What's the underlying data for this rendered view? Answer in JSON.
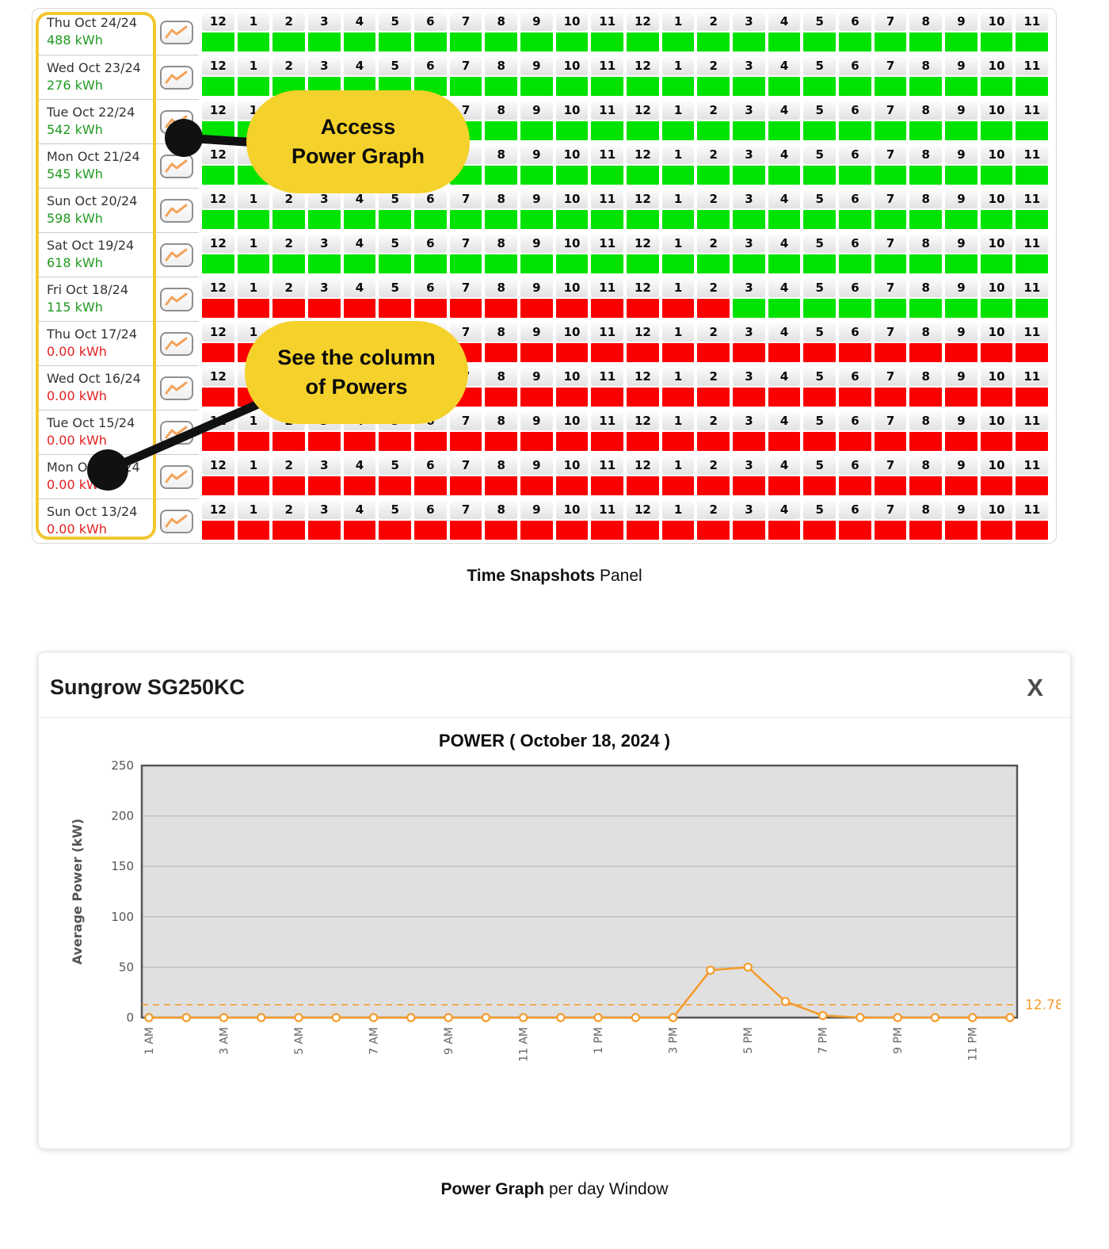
{
  "snapshot_panel": {
    "hour_labels": [
      "12",
      "1",
      "2",
      "3",
      "4",
      "5",
      "6",
      "7",
      "8",
      "9",
      "10",
      "11",
      "12",
      "1",
      "2",
      "3",
      "4",
      "5",
      "6",
      "7",
      "8",
      "9",
      "10",
      "11"
    ],
    "cell_colors": {
      "green": "#00e300",
      "red": "#fb0000"
    },
    "energy_colors": {
      "green": "#209a20",
      "red": "#e32020"
    },
    "rows": [
      {
        "date": "Thu Oct 24/24",
        "energy": "488 kWh",
        "status": "green",
        "cells": "GGGGGGGGGGGGGGGGGGGGGGGG"
      },
      {
        "date": "Wed Oct 23/24",
        "energy": "276 kWh",
        "status": "green",
        "cells": "GGGGGGGGGGGGGGGGGGGGGGGG"
      },
      {
        "date": "Tue Oct 22/24",
        "energy": "542 kWh",
        "status": "green",
        "cells": "GGGGGGGGGGGGGGGGGGGGGGGG"
      },
      {
        "date": "Mon Oct 21/24",
        "energy": "545 kWh",
        "status": "green",
        "cells": "GGGGGGGGGGGGGGGGGGGGGGGG"
      },
      {
        "date": "Sun Oct 20/24",
        "energy": "598 kWh",
        "status": "green",
        "cells": "GGGGGGGGGGGGGGGGGGGGGGGG"
      },
      {
        "date": "Sat Oct 19/24",
        "energy": "618 kWh",
        "status": "green",
        "cells": "GGGGGGGGGGGGGGGGGGGGGGGG"
      },
      {
        "date": "Fri Oct 18/24",
        "energy": "115 kWh",
        "status": "green",
        "cells": "RRRRRRRRRRRRRRRGGGGGGGGG"
      },
      {
        "date": "Thu Oct 17/24",
        "energy": "0.00 kWh",
        "status": "red",
        "cells": "RRRRRRRRRRRRRRRRRRRRRRRR"
      },
      {
        "date": "Wed Oct 16/24",
        "energy": "0.00 kWh",
        "status": "red",
        "cells": "RRRRRRRRRRRRRRRRRRRRRRRR"
      },
      {
        "date": "Tue Oct 15/24",
        "energy": "0.00 kWh",
        "status": "red",
        "cells": "RRRRRRRRRRRRRRRRRRRRRRRR"
      },
      {
        "date": "Mon Oct 14/24",
        "energy": "0.00 kWh",
        "status": "red",
        "cells": "RRRRRRRRRRRRRRRRRRRRRRRR"
      },
      {
        "date": "Sun Oct 13/24",
        "energy": "0.00 kWh",
        "status": "red",
        "cells": "RRRRRRRRRRRRRRRRRRRRRRRR"
      }
    ]
  },
  "callouts": [
    {
      "line1": "Access",
      "line2": "Power Graph"
    },
    {
      "line1": "See the column",
      "line2": "of Powers"
    }
  ],
  "captions": {
    "snapshot_bold": "Time Snapshots",
    "snapshot_rest": " Panel",
    "power_bold": "Power Graph",
    "power_rest": " per day Window"
  },
  "modal": {
    "title": "Sungrow SG250KC",
    "close_label": "X"
  },
  "chart_data": {
    "type": "line",
    "title": "POWER ( October 18, 2024 )",
    "xlabel": "",
    "ylabel": "Average Power (kW)",
    "ylim": [
      0,
      250
    ],
    "yticks": [
      0,
      50,
      100,
      150,
      200,
      250
    ],
    "grid": true,
    "legend_position": "none",
    "plot_bg": "#e0e0e0",
    "grid_color": "#bdbdbd",
    "axis_color": "#555555",
    "x": [
      "1 AM",
      "2 AM",
      "3 AM",
      "4 AM",
      "5 AM",
      "6 AM",
      "7 AM",
      "8 AM",
      "9 AM",
      "10 AM",
      "11 AM",
      "12 PM",
      "1 PM",
      "2 PM",
      "3 PM",
      "4 PM",
      "5 PM",
      "6 PM",
      "7 PM",
      "8 PM",
      "9 PM",
      "10 PM",
      "11 PM",
      "12 AM"
    ],
    "x_labels_shown": [
      "1 AM",
      "3 AM",
      "5 AM",
      "7 AM",
      "9 AM",
      "11 AM",
      "1 PM",
      "3 PM",
      "5 PM",
      "7 PM",
      "9 PM",
      "11 PM"
    ],
    "series": [
      {
        "name": "Average Power",
        "color": "#f59b2b",
        "values": [
          0,
          0,
          0,
          0,
          0,
          0,
          0,
          0,
          0,
          0,
          0,
          0,
          0,
          0,
          0,
          47,
          50,
          16,
          2,
          0,
          0,
          0,
          0,
          0
        ]
      }
    ],
    "reference_line": {
      "value": 12.78,
      "label": "12.78",
      "style": "dashed",
      "color": "#f59b2b"
    }
  }
}
